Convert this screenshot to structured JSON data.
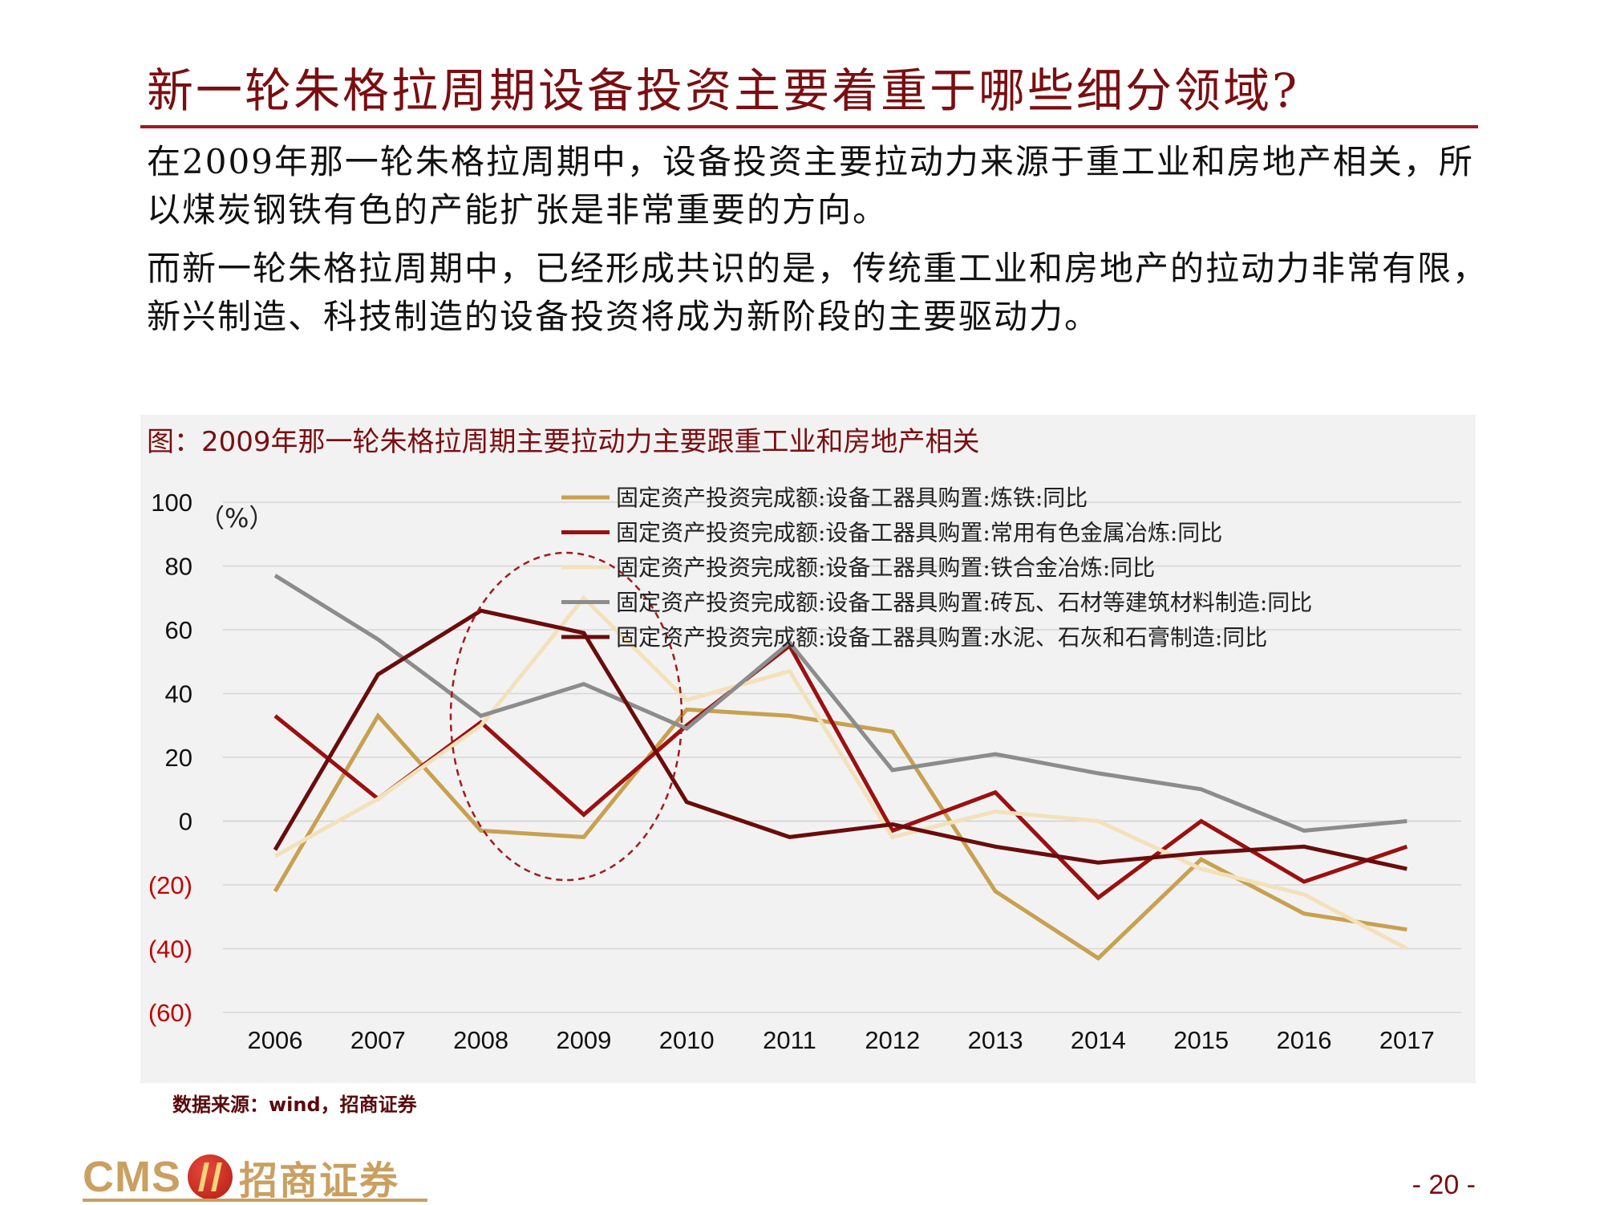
{
  "page": {
    "title": "新一轮朱格拉周期设备投资主要着重于哪些细分领域?",
    "paragraph1": "在2009年那一轮朱格拉周期中，设备投资主要拉动力来源于重工业和房地产相关，所以煤炭钢铁有色的产能扩张是非常重要的方向。",
    "paragraph2": "而新一轮朱格拉周期中，已经形成共识的是，传统重工业和房地产的拉动力非常有限，新兴制造、科技制造的设备投资将成为新阶段的主要驱动力。",
    "source": "数据来源：wind，招商证券",
    "logo_text": "CMS",
    "logo_name": "招商证券",
    "page_number": "- 20 -"
  },
  "chart_data": {
    "type": "line",
    "title": "图：2009年那一轮朱格拉周期主要拉动力主要跟重工业和房地产相关",
    "unit_label": "（%）",
    "categories": [
      "2006",
      "2007",
      "2008",
      "2009",
      "2010",
      "2011",
      "2012",
      "2013",
      "2014",
      "2015",
      "2016",
      "2017"
    ],
    "ylim": [
      -60,
      100
    ],
    "yticks": [
      100,
      80,
      60,
      40,
      20,
      0,
      -20,
      -40,
      -60
    ],
    "ytick_labels": [
      "100",
      "80",
      "60",
      "40",
      "20",
      "0",
      "(20)",
      "(40)",
      "(60)"
    ],
    "negative_tick_color": "#c00000",
    "grid": true,
    "legend_position": "top-center",
    "series": [
      {
        "name": "固定资产投资完成额:设备工器具购置:炼铁:同比",
        "color": "#c8a050",
        "values": [
          -22,
          33,
          -3,
          -5,
          35,
          33,
          28,
          -22,
          -43,
          -12,
          -29,
          -34
        ]
      },
      {
        "name": "固定资产投资完成额:设备工器具购置:常用有色金属冶炼:同比",
        "color": "#9b1010",
        "values": [
          33,
          7,
          31,
          2,
          30,
          55,
          -3,
          9,
          -24,
          0,
          -19,
          -8
        ]
      },
      {
        "name": "固定资产投资完成额:设备工器具购置:铁合金冶炼:同比",
        "color": "#f3e1bb",
        "values": [
          -11,
          7,
          30,
          70,
          38,
          47,
          -5,
          3,
          0,
          -15,
          -23,
          -40
        ]
      },
      {
        "name": "固定资产投资完成额:设备工器具购置:砖瓦、石材等建筑材料制造:同比",
        "color": "#8c8c8c",
        "values": [
          77,
          57,
          33,
          43,
          29,
          56,
          16,
          21,
          15,
          10,
          -3,
          0
        ]
      },
      {
        "name": "固定资产投资完成额:设备工器具购置:水泥、石灰和石膏制造:同比",
        "color": "#6a0c0c",
        "values": [
          -9,
          46,
          66,
          59,
          6,
          -5,
          -1,
          -8,
          -13,
          -10,
          -8,
          -15
        ]
      }
    ],
    "annotation": "dashed-ellipse-2008-2010"
  }
}
